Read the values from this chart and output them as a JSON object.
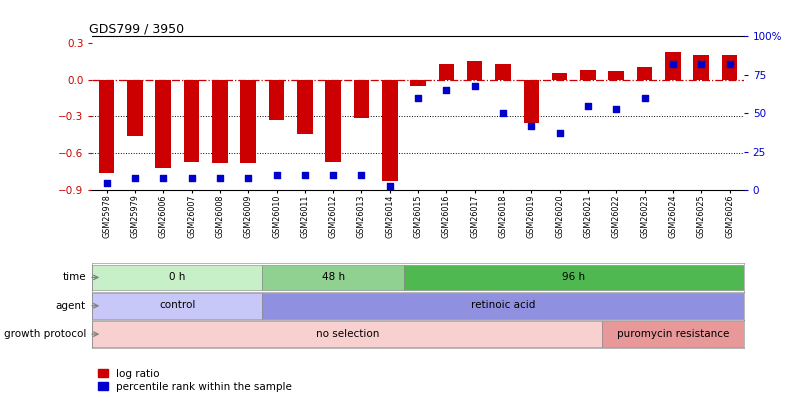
{
  "title": "GDS799 / 3950",
  "samples": [
    "GSM25978",
    "GSM25979",
    "GSM26006",
    "GSM26007",
    "GSM26008",
    "GSM26009",
    "GSM26010",
    "GSM26011",
    "GSM26012",
    "GSM26013",
    "GSM26014",
    "GSM26015",
    "GSM26016",
    "GSM26017",
    "GSM26018",
    "GSM26019",
    "GSM26020",
    "GSM26021",
    "GSM26022",
    "GSM26023",
    "GSM26024",
    "GSM26025",
    "GSM26026"
  ],
  "log_ratio": [
    -0.76,
    -0.46,
    -0.72,
    -0.67,
    -0.68,
    -0.68,
    -0.33,
    -0.44,
    -0.67,
    -0.31,
    -0.82,
    -0.05,
    0.13,
    0.15,
    0.13,
    -0.35,
    0.05,
    0.08,
    0.07,
    0.1,
    0.22,
    0.2,
    0.2
  ],
  "percentile": [
    5,
    8,
    8,
    8,
    8,
    8,
    10,
    10,
    10,
    10,
    3,
    60,
    65,
    68,
    50,
    42,
    37,
    55,
    53,
    60,
    82,
    82,
    82
  ],
  "time_groups": [
    {
      "label": "0 h",
      "start": 0,
      "end": 6,
      "color": "#c8f0c8"
    },
    {
      "label": "48 h",
      "start": 6,
      "end": 11,
      "color": "#90d090"
    },
    {
      "label": "96 h",
      "start": 11,
      "end": 23,
      "color": "#50b850"
    }
  ],
  "agent_groups": [
    {
      "label": "control",
      "start": 0,
      "end": 6,
      "color": "#c8c8f8"
    },
    {
      "label": "retinoic acid",
      "start": 6,
      "end": 23,
      "color": "#9090e0"
    }
  ],
  "growth_groups": [
    {
      "label": "no selection",
      "start": 0,
      "end": 18,
      "color": "#f8d0d0"
    },
    {
      "label": "puromycin resistance",
      "start": 18,
      "end": 23,
      "color": "#e89898"
    }
  ],
  "bar_color": "#cc0000",
  "dot_color": "#0000cc",
  "ylim_left": [
    -0.9,
    0.35
  ],
  "ylim_right": [
    0,
    100
  ],
  "yticks_left": [
    -0.9,
    -0.6,
    -0.3,
    0.0,
    0.3
  ],
  "yticks_right": [
    0,
    25,
    50,
    75,
    100
  ],
  "row_labels": [
    "time",
    "agent",
    "growth protocol"
  ],
  "legend_labels": [
    "log ratio",
    "percentile rank within the sample"
  ]
}
